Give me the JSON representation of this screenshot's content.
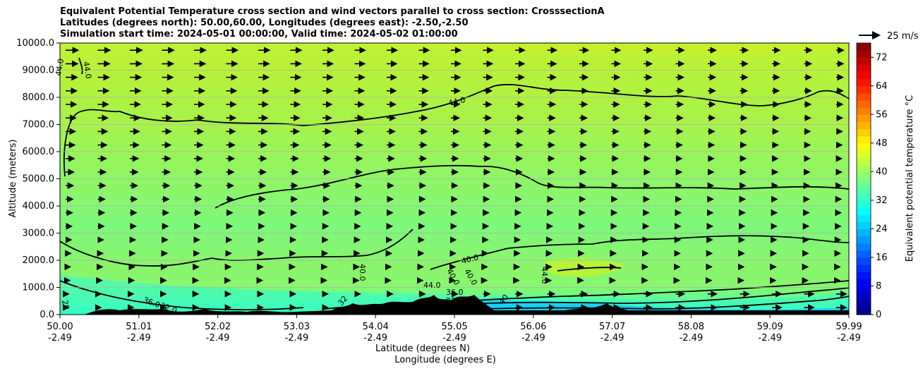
{
  "titles": {
    "line1": "Equivalent Potential Temperature cross section and wind vectors parallel to cross section: CrosssectionA",
    "line2": "Latitudes (degrees north): 50.00,60.00, Longitudes (degrees east): -2.50,-2.50",
    "line3": "Simulation start time: 2024-05-01 00:00:00, Valid time: 2024-05-02 01:00:00"
  },
  "chart_data": {
    "type": "heatmap",
    "ylabel": "Altitude (meters)",
    "xlabel_lat": "Latitude (degrees N)",
    "xlabel_lon": "Longitude (degrees E)",
    "ylim": [
      0,
      10000
    ],
    "y_ticks": [
      "0.0",
      "1000.0",
      "2000.0",
      "3000.0",
      "4000.0",
      "5000.0",
      "6000.0",
      "7000.0",
      "8000.0",
      "9000.0",
      "10000.0"
    ],
    "x_ticks_lat": [
      "50.00",
      "51.01",
      "52.02",
      "53.03",
      "54.04",
      "55.05",
      "56.06",
      "57.07",
      "58.08",
      "59.09",
      "59.99"
    ],
    "x_ticks_lon": [
      "-2.49",
      "-2.49",
      "-2.49",
      "-2.49",
      "-2.49",
      "-2.49",
      "-2.49",
      "-2.49",
      "-2.49",
      "-2.49",
      "-2.49"
    ],
    "grid": "horizontal",
    "colorbar": {
      "label": "Equivalent potential temperature °C",
      "range": [
        0,
        76
      ],
      "ticks": [
        "0",
        "8",
        "16",
        "24",
        "32",
        "40",
        "48",
        "56",
        "64",
        "72"
      ],
      "colormap": "jet"
    },
    "wind_key": "25 m/s",
    "contour_labels": [
      "44.0",
      "44.0",
      "44.0",
      "40.0",
      "40.0",
      "40.0",
      "40.0",
      "44.0",
      "44.0",
      "36.0",
      "32.0",
      "28",
      "36.0",
      "28.0",
      "40",
      "32"
    ],
    "colors": {
      "terrain": "#000000",
      "contour": "#000000",
      "gridline": "#b0b0b0"
    }
  }
}
